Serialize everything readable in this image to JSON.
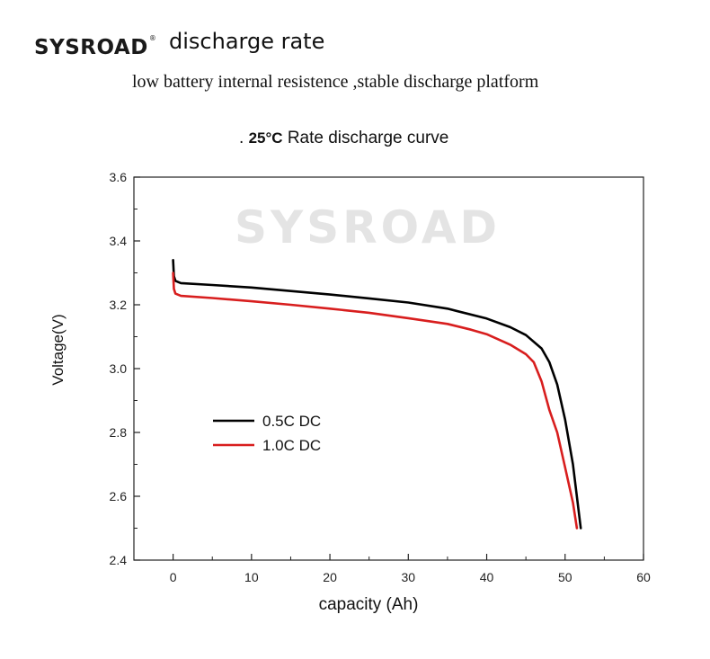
{
  "header": {
    "logo_text": "SYSROAD",
    "logo_mark": "®",
    "title": "discharge rate",
    "subtitle": "low battery internal resistence ,stable discharge platform"
  },
  "chart_heading": {
    "prefix": ".",
    "temperature": "25°C",
    "text": "Rate discharge curve"
  },
  "watermark": "SYSROAD",
  "colors": {
    "series_05c": "#000000",
    "series_10c": "#d81e1e",
    "watermark": "#e4e4e4"
  },
  "chart_data": {
    "type": "line",
    "title": "Rate discharge curve",
    "xlabel": "capacity  (Ah)",
    "ylabel": "Voltage(V)",
    "xlim": [
      -5,
      60
    ],
    "ylim": [
      2.4,
      3.6
    ],
    "x_ticks": [
      0,
      10,
      20,
      30,
      40,
      50,
      60
    ],
    "y_ticks": [
      2.4,
      2.6,
      2.8,
      3.0,
      3.2,
      3.4,
      3.6
    ],
    "y_tick_labels": [
      "2.4",
      "2.6",
      "2.8",
      "3.0",
      "3.2",
      "3.4",
      "3.6"
    ],
    "grid": false,
    "legend_position": "lower-left",
    "series": [
      {
        "name": "0.5C DC",
        "color": "#000000",
        "points": [
          [
            0,
            3.34
          ],
          [
            0.1,
            3.29
          ],
          [
            0.3,
            3.275
          ],
          [
            1,
            3.268
          ],
          [
            5,
            3.262
          ],
          [
            10,
            3.254
          ],
          [
            15,
            3.243
          ],
          [
            20,
            3.232
          ],
          [
            25,
            3.22
          ],
          [
            30,
            3.207
          ],
          [
            35,
            3.188
          ],
          [
            40,
            3.157
          ],
          [
            43,
            3.13
          ],
          [
            45,
            3.105
          ],
          [
            47,
            3.063
          ],
          [
            48,
            3.02
          ],
          [
            49,
            2.95
          ],
          [
            50,
            2.84
          ],
          [
            51,
            2.7
          ],
          [
            52,
            2.5
          ]
        ]
      },
      {
        "name": "1.0C DC",
        "color": "#d81e1e",
        "points": [
          [
            0,
            3.3
          ],
          [
            0.1,
            3.25
          ],
          [
            0.3,
            3.235
          ],
          [
            1,
            3.228
          ],
          [
            5,
            3.221
          ],
          [
            10,
            3.211
          ],
          [
            15,
            3.2
          ],
          [
            20,
            3.188
          ],
          [
            25,
            3.175
          ],
          [
            30,
            3.158
          ],
          [
            35,
            3.14
          ],
          [
            38,
            3.122
          ],
          [
            40,
            3.108
          ],
          [
            43,
            3.075
          ],
          [
            45,
            3.045
          ],
          [
            46,
            3.02
          ],
          [
            47,
            2.96
          ],
          [
            48,
            2.87
          ],
          [
            49,
            2.8
          ],
          [
            50,
            2.69
          ],
          [
            51,
            2.58
          ],
          [
            51.5,
            2.5
          ]
        ]
      }
    ]
  }
}
